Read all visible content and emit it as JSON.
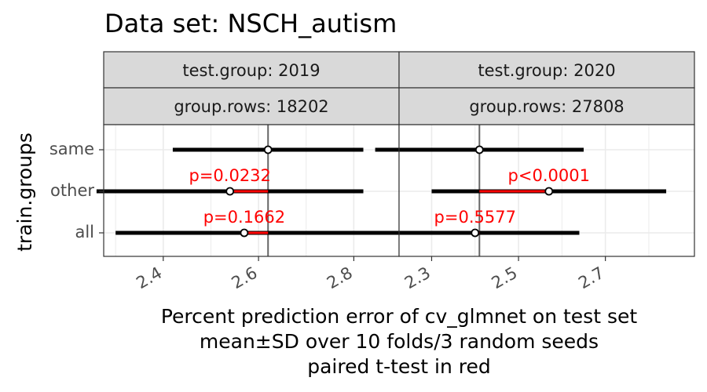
{
  "title": "Data set: NSCH_autism",
  "xlabel_lines": [
    "Percent prediction error of cv_glmnet on test set",
    "mean±SD over 10 folds/3 random seeds",
    "paired t-test in red"
  ],
  "ylabel": "train.groups",
  "colors": {
    "interval": "#000000",
    "diff": "#ff0000",
    "ref_line": "#666666",
    "strip_bg": "#d9d9d9",
    "grid": "#ebebeb"
  },
  "chart_data": {
    "type": "forest",
    "categories": [
      "same",
      "other",
      "all"
    ],
    "panels": [
      {
        "strip_top": "test.group: 2019",
        "strip_bottom": "group.rows: 18202",
        "xlim": [
          2.275,
          2.895
        ],
        "xticks": [
          2.4,
          2.6,
          2.8
        ],
        "xtick_labels": [
          "2.4",
          "2.6",
          "2.8"
        ],
        "reference": 2.62,
        "rows": [
          {
            "category": "same",
            "mean": 2.62,
            "lo": 2.42,
            "hi": 2.82,
            "p": ""
          },
          {
            "category": "other",
            "mean": 2.54,
            "lo": 2.26,
            "hi": 2.82,
            "p": "p=0.0232"
          },
          {
            "category": "all",
            "mean": 2.57,
            "lo": 2.3,
            "hi": 2.84,
            "p": "p=0.1662"
          }
        ]
      },
      {
        "strip_top": "test.group: 2020",
        "strip_bottom": "group.rows: 27808",
        "xlim": [
          2.225,
          2.905
        ],
        "xticks": [
          2.3,
          2.5,
          2.7
        ],
        "xtick_labels": [
          "2.3",
          "2.5",
          "2.7"
        ],
        "reference": 2.41,
        "rows": [
          {
            "category": "same",
            "mean": 2.41,
            "lo": 2.17,
            "hi": 2.65,
            "p": ""
          },
          {
            "category": "other",
            "mean": 2.57,
            "lo": 2.3,
            "hi": 2.84,
            "p": "p<0.0001"
          },
          {
            "category": "all",
            "mean": 2.4,
            "lo": 2.16,
            "hi": 2.64,
            "p": "p=0.5577"
          }
        ]
      }
    ]
  }
}
